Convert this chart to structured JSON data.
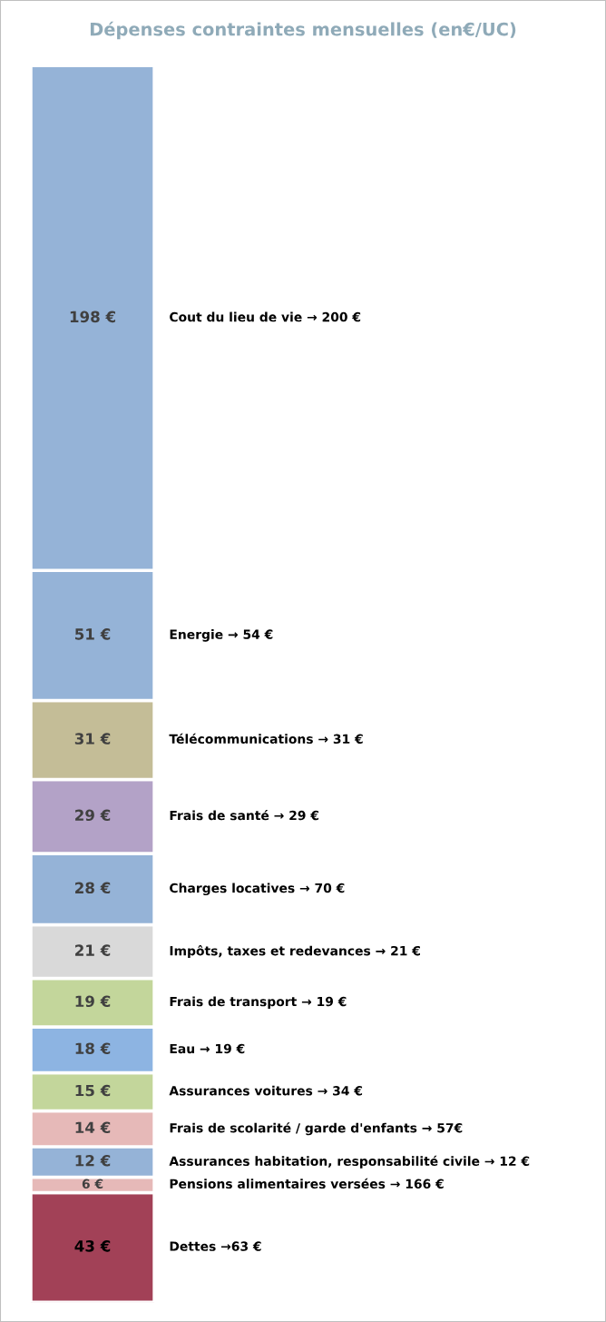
{
  "chart_data": {
    "type": "bar",
    "title": "Dépenses contraintes mensuelles (en€/UC)",
    "stacked": true,
    "categories": [
      null
    ],
    "series": [
      {
        "name": "Dettes →63 €",
        "color": "#a24157",
        "values": [
          43
        ],
        "value_labels": [
          "43 €"
        ]
      },
      {
        "name": "Pensions alimentaires versées → 166 €",
        "color": "#e6b9b8",
        "values": [
          6
        ],
        "value_labels": [
          "6 €"
        ]
      },
      {
        "name": "Assurances habitation, responsabilité civile → 12 €",
        "color": "#95b3d7",
        "values": [
          12
        ],
        "value_labels": [
          "12 €"
        ]
      },
      {
        "name": "Frais de scolarité / garde d'enfants → 57€",
        "color": "#e6b9b8",
        "values": [
          14
        ],
        "value_labels": [
          "14 €"
        ]
      },
      {
        "name": "Assurances voitures → 34 €",
        "color": "#c3d69b",
        "values": [
          15
        ],
        "value_labels": [
          "15 €"
        ]
      },
      {
        "name": "Eau → 19 €",
        "color": "#8db4e2",
        "values": [
          18
        ],
        "value_labels": [
          "18 €"
        ]
      },
      {
        "name": "Frais de transport → 19 €",
        "color": "#c3d69b",
        "values": [
          19
        ],
        "value_labels": [
          "19 €"
        ]
      },
      {
        "name": "Impôts, taxes et redevances → 21 €",
        "color": "#d9d9d9",
        "values": [
          21
        ],
        "value_labels": [
          "21 €"
        ]
      },
      {
        "name": "Charges locatives → 70 €",
        "color": "#95b3d7",
        "values": [
          28
        ],
        "value_labels": [
          "28 €"
        ]
      },
      {
        "name": "Frais de santé → 29 €",
        "color": "#b3a2c7",
        "values": [
          29
        ],
        "value_labels": [
          "29 €"
        ]
      },
      {
        "name": "Télécommunications → 31 €",
        "color": "#c4bd97",
        "values": [
          31
        ],
        "value_labels": [
          "31 €"
        ]
      },
      {
        "name": "Energie → 54 €",
        "color": "#95b3d7",
        "values": [
          51
        ],
        "value_labels": [
          "51 €"
        ]
      },
      {
        "name": "Cout du lieu de vie → 200 €",
        "color": "#95b3d7",
        "values": [
          198
        ],
        "value_labels": [
          "198 €"
        ]
      }
    ]
  }
}
